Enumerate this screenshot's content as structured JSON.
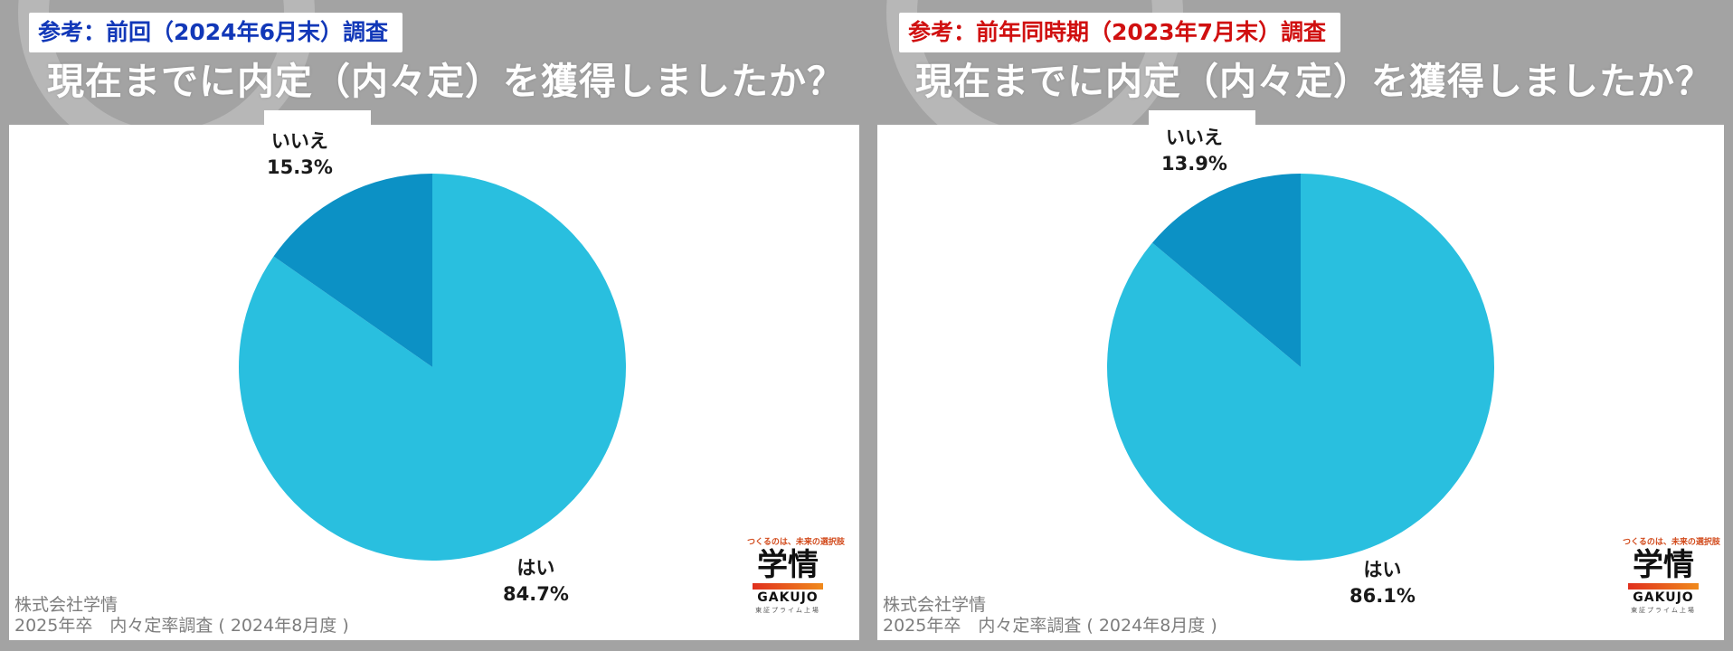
{
  "panels": [
    {
      "reference_label": "参考：前回（2024年6月末）調査",
      "reference_color": "#1238b8",
      "question": "現在までに内定（内々定）を獲得しましたか？",
      "source_line1": "株式会社学情",
      "source_line2": "2025年卒　内々定率調査 ( 2024年8月度 )",
      "logo": {
        "tagline": "つくるのは、未来の選択肢",
        "name": "学情",
        "romaji": "GAKUJO",
        "sub": "東証プライム上場"
      }
    },
    {
      "reference_label": "参考：前年同時期（2023年7月末）調査",
      "reference_color": "#d01010",
      "question": "現在までに内定（内々定）を獲得しましたか？",
      "source_line1": "株式会社学情",
      "source_line2": "2025年卒　内々定率調査 ( 2024年8月度 )",
      "logo": {
        "tagline": "つくるのは、未来の選択肢",
        "name": "学情",
        "romaji": "GAKUJO",
        "sub": "東証プライム上場"
      }
    }
  ],
  "chart_data": [
    {
      "type": "pie",
      "title": "",
      "slices": [
        {
          "label": "はい",
          "value": 84.7,
          "value_label": "84.7%",
          "color": "#29bfdf"
        },
        {
          "label": "いいえ",
          "value": 15.3,
          "value_label": "15.3%",
          "color": "#0c91c5"
        }
      ]
    },
    {
      "type": "pie",
      "title": "",
      "slices": [
        {
          "label": "はい",
          "value": 86.1,
          "value_label": "86.1%",
          "color": "#29bfdf"
        },
        {
          "label": "いいえ",
          "value": 13.9,
          "value_label": "13.9%",
          "color": "#0c91c5"
        }
      ]
    }
  ]
}
